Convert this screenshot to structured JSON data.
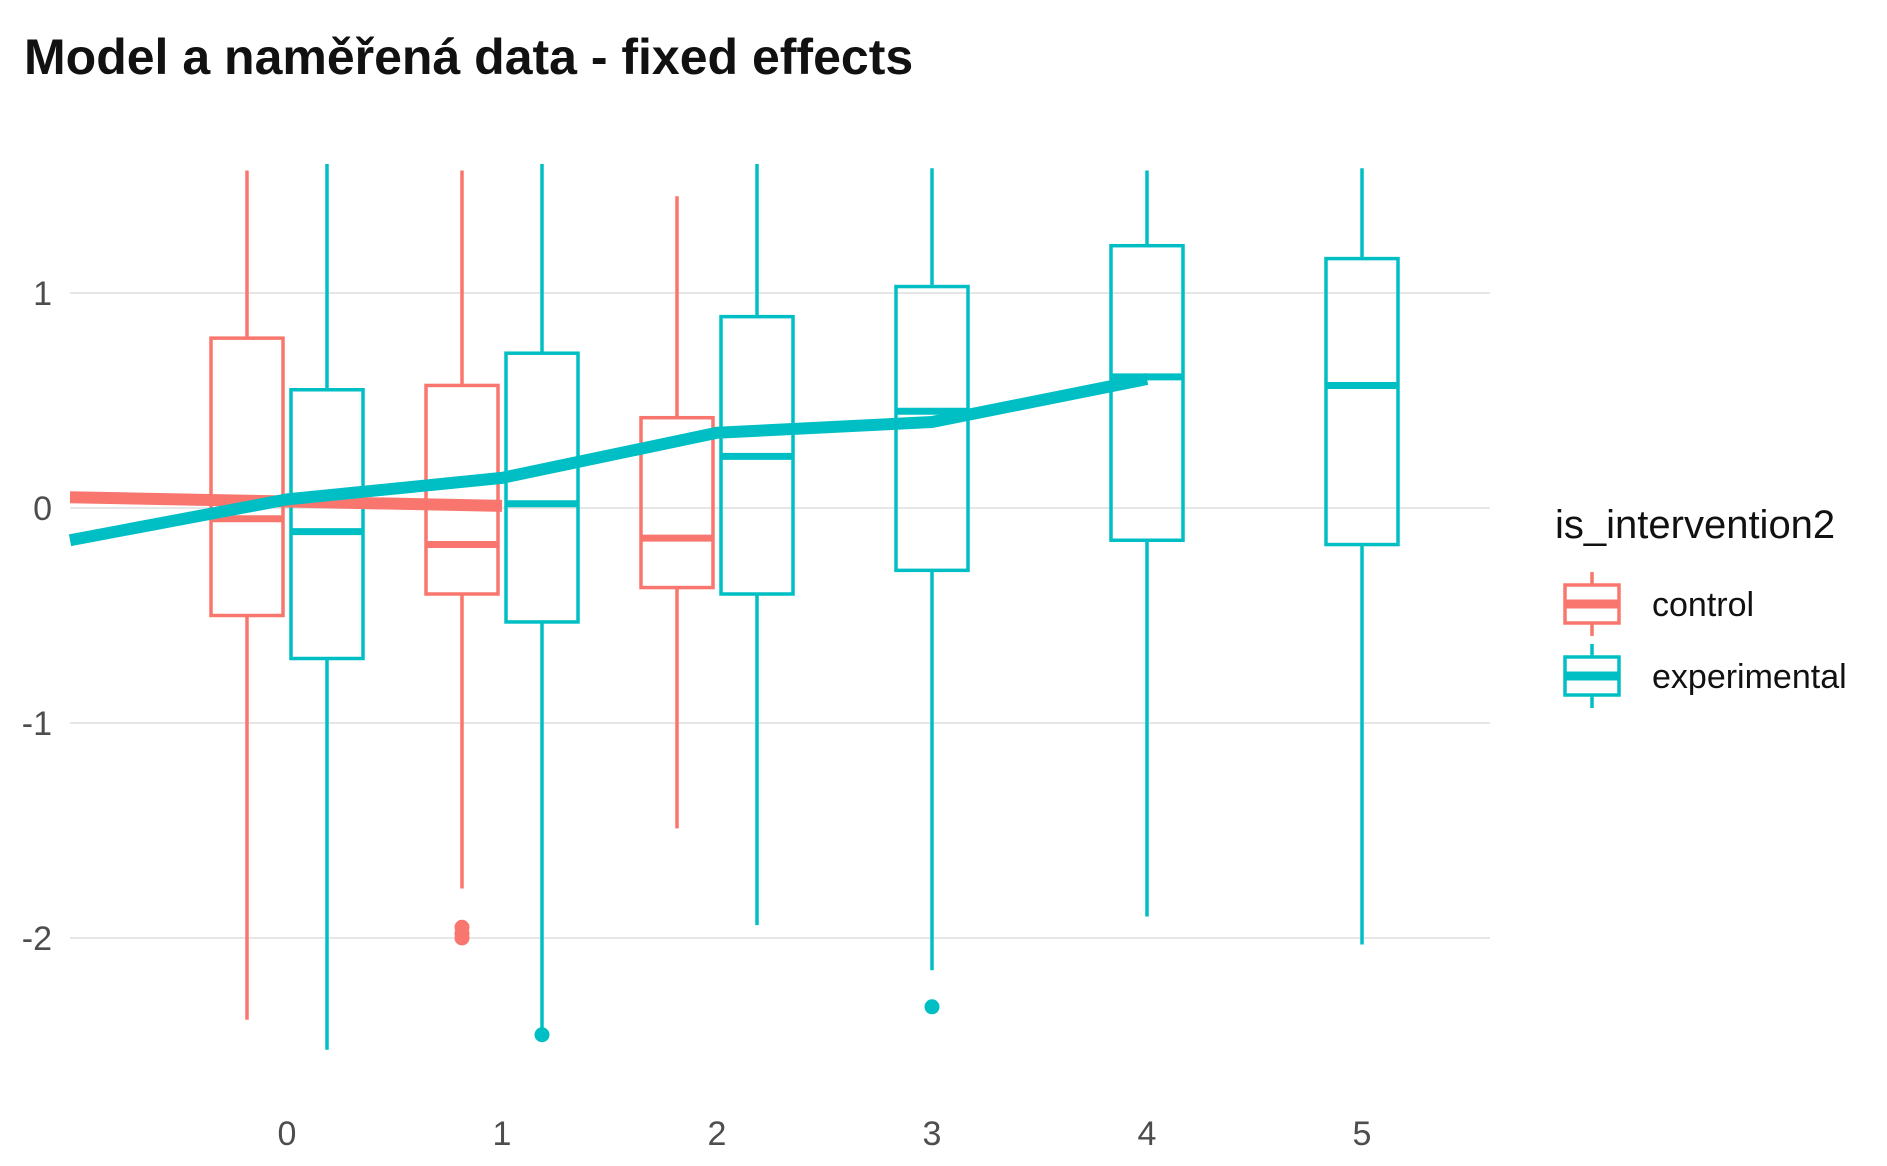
{
  "chart_data": {
    "type": "boxplot",
    "title": "Model a naměřená data - fixed effects",
    "xlabel": "",
    "ylabel": "",
    "x_ticks": [
      "0",
      "1",
      "2",
      "3",
      "4",
      "5"
    ],
    "y_ticks": [
      "1",
      "0",
      "-1",
      "-2"
    ],
    "ylim": [
      -2.6,
      1.6
    ],
    "grid": "horizontal major",
    "legend": {
      "title": "is_intervention2",
      "position": "right",
      "entries": [
        "control",
        "experimental"
      ]
    },
    "colors": {
      "control": "#F8766D",
      "experimental": "#00BFC4"
    },
    "boxes": [
      {
        "group": "control",
        "x": 0,
        "whisker_low": -2.38,
        "q1": -0.5,
        "median": -0.05,
        "q3": 0.79,
        "whisker_high": 1.57,
        "outliers": []
      },
      {
        "group": "experimental",
        "x": 0,
        "whisker_low": -2.52,
        "q1": -0.7,
        "median": -0.11,
        "q3": 0.55,
        "whisker_high": 1.6,
        "outliers": []
      },
      {
        "group": "control",
        "x": 1,
        "whisker_low": -1.77,
        "q1": -0.4,
        "median": -0.17,
        "q3": 0.57,
        "whisker_high": 1.57,
        "outliers": [
          -1.95,
          -1.98,
          -2.0
        ]
      },
      {
        "group": "experimental",
        "x": 1,
        "whisker_low": -2.42,
        "q1": -0.53,
        "median": 0.02,
        "q3": 0.72,
        "whisker_high": 1.6,
        "outliers": [
          -2.45
        ]
      },
      {
        "group": "control",
        "x": 2,
        "whisker_low": -1.49,
        "q1": -0.37,
        "median": -0.14,
        "q3": 0.42,
        "whisker_high": 1.45,
        "outliers": []
      },
      {
        "group": "experimental",
        "x": 2,
        "whisker_low": -1.94,
        "q1": -0.4,
        "median": 0.24,
        "q3": 0.89,
        "whisker_high": 1.6,
        "outliers": []
      },
      {
        "group": "experimental",
        "x": 3,
        "whisker_low": -2.15,
        "q1": -0.29,
        "median": 0.45,
        "q3": 1.03,
        "whisker_high": 1.58,
        "outliers": [
          -2.32
        ]
      },
      {
        "group": "experimental",
        "x": 4,
        "whisker_low": -1.9,
        "q1": -0.15,
        "median": 0.61,
        "q3": 1.22,
        "whisker_high": 1.57,
        "outliers": []
      },
      {
        "group": "experimental",
        "x": 5,
        "whisker_low": -2.03,
        "q1": -0.17,
        "median": 0.57,
        "q3": 1.16,
        "whisker_high": 1.58,
        "outliers": []
      }
    ],
    "model_lines": [
      {
        "group": "control",
        "x": [
          -1,
          0,
          1
        ],
        "y": [
          0.05,
          0.03,
          0.01
        ]
      },
      {
        "group": "experimental",
        "x": [
          -1,
          0,
          1,
          2,
          3,
          4
        ],
        "y": [
          -0.15,
          0.04,
          0.14,
          0.35,
          0.4,
          0.6
        ]
      }
    ]
  }
}
